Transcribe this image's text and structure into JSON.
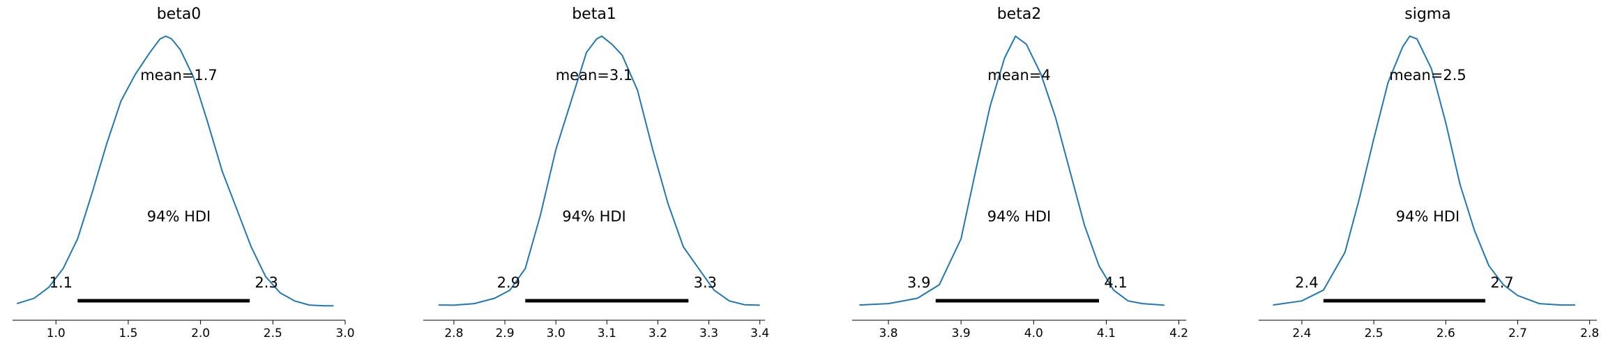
{
  "chart_data": [
    {
      "type": "line",
      "title": "beta0",
      "mean_label": "mean=1.7",
      "hdi_label": "94% HDI",
      "hdi": [
        1.15,
        2.34
      ],
      "hdi_text": [
        "1.1",
        "2.3"
      ],
      "xlim": [
        0.7,
        3.0
      ],
      "xticks": [
        1.0,
        1.5,
        2.0,
        2.5,
        3.0
      ],
      "xtick_labels": [
        "1.0",
        "1.5",
        "2.0",
        "2.5",
        "3.0"
      ],
      "x": [
        0.73,
        0.85,
        0.95,
        1.05,
        1.15,
        1.25,
        1.35,
        1.45,
        1.55,
        1.65,
        1.72,
        1.76,
        1.8,
        1.86,
        1.95,
        2.05,
        2.15,
        2.25,
        2.35,
        2.45,
        2.55,
        2.65,
        2.75,
        2.85,
        2.92
      ],
      "y": [
        0.01,
        0.03,
        0.07,
        0.14,
        0.25,
        0.42,
        0.6,
        0.76,
        0.86,
        0.94,
        0.99,
        1.0,
        0.99,
        0.95,
        0.85,
        0.68,
        0.5,
        0.36,
        0.22,
        0.11,
        0.05,
        0.02,
        0.005,
        0.002,
        0.002
      ]
    },
    {
      "type": "line",
      "title": "beta1",
      "mean_label": "mean=3.1",
      "hdi_label": "94% HDI",
      "hdi": [
        2.94,
        3.26
      ],
      "hdi_text": [
        "2.9",
        "3.3"
      ],
      "xlim": [
        2.74,
        3.41
      ],
      "xticks": [
        2.8,
        2.9,
        3.0,
        3.1,
        3.2,
        3.3,
        3.4
      ],
      "xtick_labels": [
        "2.8",
        "2.9",
        "3.0",
        "3.1",
        "3.2",
        "3.3",
        "3.4"
      ],
      "x": [
        2.77,
        2.8,
        2.84,
        2.88,
        2.91,
        2.94,
        2.97,
        3.0,
        3.03,
        3.06,
        3.08,
        3.09,
        3.11,
        3.13,
        3.16,
        3.19,
        3.22,
        3.25,
        3.28,
        3.31,
        3.34,
        3.37,
        3.4
      ],
      "y": [
        0.005,
        0.004,
        0.01,
        0.03,
        0.06,
        0.14,
        0.34,
        0.58,
        0.76,
        0.94,
        0.99,
        1.0,
        0.97,
        0.93,
        0.8,
        0.58,
        0.38,
        0.22,
        0.14,
        0.06,
        0.02,
        0.006,
        0.004
      ]
    },
    {
      "type": "line",
      "title": "beta2",
      "mean_label": "mean=4",
      "hdi_label": "94% HDI",
      "hdi": [
        3.865,
        4.09
      ],
      "hdi_text": [
        "3.9",
        "4.1"
      ],
      "xlim": [
        3.75,
        4.21
      ],
      "xticks": [
        3.8,
        3.9,
        4.0,
        4.1,
        4.2
      ],
      "xtick_labels": [
        "3.8",
        "3.9",
        "4.0",
        "4.1",
        "4.2"
      ],
      "x": [
        3.76,
        3.8,
        3.84,
        3.87,
        3.9,
        3.92,
        3.94,
        3.96,
        3.975,
        3.99,
        4.01,
        4.03,
        4.05,
        4.07,
        4.09,
        4.11,
        4.13,
        4.15,
        4.18
      ],
      "y": [
        0.005,
        0.01,
        0.03,
        0.08,
        0.25,
        0.5,
        0.74,
        0.92,
        1.0,
        0.97,
        0.86,
        0.7,
        0.5,
        0.3,
        0.15,
        0.06,
        0.02,
        0.01,
        0.004
      ]
    },
    {
      "type": "line",
      "title": "sigma",
      "mean_label": "mean=2.5",
      "hdi_label": "94% HDI",
      "hdi": [
        2.43,
        2.655
      ],
      "hdi_text": [
        "2.4",
        "2.7"
      ],
      "xlim": [
        2.34,
        2.81
      ],
      "xticks": [
        2.4,
        2.5,
        2.6,
        2.7,
        2.8
      ],
      "xtick_labels": [
        "2.4",
        "2.5",
        "2.6",
        "2.7",
        "2.8"
      ],
      "x": [
        2.36,
        2.4,
        2.43,
        2.46,
        2.48,
        2.5,
        2.52,
        2.54,
        2.55,
        2.56,
        2.58,
        2.6,
        2.62,
        2.64,
        2.66,
        2.68,
        2.7,
        2.73,
        2.76,
        2.78
      ],
      "y": [
        0.005,
        0.02,
        0.06,
        0.2,
        0.4,
        0.62,
        0.83,
        0.96,
        1.0,
        0.99,
        0.88,
        0.68,
        0.45,
        0.28,
        0.15,
        0.08,
        0.04,
        0.01,
        0.005,
        0.005
      ]
    }
  ]
}
